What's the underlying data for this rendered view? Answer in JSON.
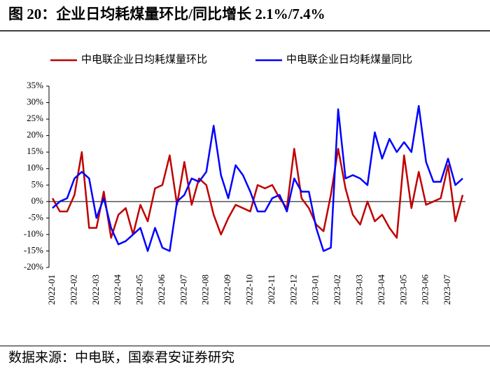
{
  "chart_data": {
    "type": "line",
    "title": "图 20：企业日均耗煤量环比/同比增长 2.1%/7.4%",
    "source": "数据来源：中电联，国泰君安证券研究",
    "categories": [
      "2022-01",
      null,
      null,
      "2022-02",
      null,
      null,
      "2022-03",
      null,
      null,
      "2022-04",
      null,
      null,
      "2022-05",
      null,
      null,
      "2022-06",
      null,
      null,
      "2022-07",
      null,
      null,
      "2022-08",
      null,
      null,
      "2022-09",
      null,
      null,
      "2022-10",
      null,
      null,
      "2022-11",
      null,
      null,
      "2022-12",
      null,
      null,
      "2023-01",
      null,
      null,
      "2023-02",
      null,
      null,
      "2023-03",
      null,
      null,
      "2023-04",
      null,
      null,
      "2023-05",
      null,
      null,
      "2023-06",
      null,
      null,
      "2023-07",
      null,
      null
    ],
    "series": [
      {
        "name": "中电联企业日均耗煤量环比",
        "color": "#c00000",
        "values": [
          1,
          -3,
          -3,
          2,
          15,
          -8,
          -8,
          3,
          -11,
          -4,
          -2,
          -10,
          -1,
          -6,
          4,
          5,
          14,
          -1,
          12,
          -1,
          7,
          5,
          -4,
          -10,
          -5,
          -1,
          -2,
          -3,
          5,
          4,
          5,
          1,
          -2,
          16,
          1,
          -2,
          -7,
          -9,
          2,
          16,
          4,
          -4,
          -7,
          0,
          -6,
          -4,
          -8,
          -11,
          14,
          -2,
          9,
          -1,
          0,
          1,
          11,
          -6,
          2
        ]
      },
      {
        "name": "中电联企业日均耗煤量同比",
        "color": "#0000ff",
        "values": [
          -2,
          0,
          1,
          7,
          9,
          7,
          -5,
          1,
          -8,
          -13,
          -12,
          -10,
          -8,
          -15,
          -8,
          -14,
          -15,
          0,
          2,
          7,
          6,
          9,
          23,
          8,
          1,
          11,
          8,
          3,
          -3,
          -3,
          1,
          2,
          -3,
          7,
          3,
          3,
          -8,
          -15,
          -14,
          28,
          7,
          8,
          7,
          5,
          21,
          13,
          19,
          15,
          18,
          15,
          29,
          12,
          6,
          6,
          13,
          5,
          7
        ]
      }
    ],
    "ylim": [
      -20,
      35
    ],
    "yticks": [
      {
        "value": -20,
        "label": "-20%"
      },
      {
        "value": -15,
        "label": "-15%"
      },
      {
        "value": -10,
        "label": "-10%"
      },
      {
        "value": -5,
        "label": "-5%"
      },
      {
        "value": 0,
        "label": "0%"
      },
      {
        "value": 5,
        "label": "5%"
      },
      {
        "value": 10,
        "label": "10%"
      },
      {
        "value": 15,
        "label": "15%"
      },
      {
        "value": 20,
        "label": "20%"
      },
      {
        "value": 25,
        "label": "25%"
      },
      {
        "value": 30,
        "label": "30%"
      },
      {
        "value": 35,
        "label": "35%"
      }
    ],
    "legend": "top"
  }
}
